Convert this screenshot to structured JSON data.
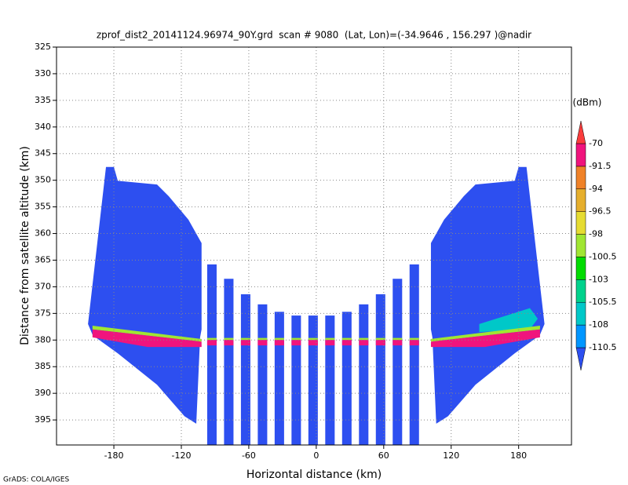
{
  "chart_data": {
    "type": "swath",
    "title": "zprof_dist2_20141124.96974_90Y.grd  scan # 9080  (Lat, Lon)=(-34.9646 , 156.297 )@nadir",
    "x_label": "Horizontal distance (km)",
    "y_label": "Distance from satellite altitude (km)",
    "footer": "GrADS: COLA/IGES",
    "xlim": [
      -231,
      227
    ],
    "xticks": [
      -180,
      -120,
      -60,
      0,
      60,
      120,
      180
    ],
    "ylim": [
      325,
      399.7
    ],
    "y_inverted": true,
    "yticks": [
      325,
      330,
      335,
      340,
      345,
      350,
      355,
      360,
      365,
      370,
      375,
      380,
      385,
      390,
      395
    ],
    "grid": true,
    "regions": [
      {
        "color": "#2d4ff0",
        "points": [
          [
            -187,
            347.5
          ],
          [
            -180,
            347.5
          ],
          [
            -176.5,
            350.1
          ],
          [
            -141.6,
            350.8
          ],
          [
            -131.2,
            353
          ],
          [
            -113.7,
            357.4
          ],
          [
            -102,
            361.8
          ],
          [
            -102,
            378
          ],
          [
            -103.3,
            379.5
          ],
          [
            -106.7,
            395.7
          ],
          [
            -117.2,
            394.3
          ],
          [
            -141.6,
            388.4
          ],
          [
            -176.5,
            382.5
          ],
          [
            -198.8,
            379.1
          ],
          [
            -203,
            377
          ]
        ]
      },
      {
        "color": "#2d4ff0",
        "points": [
          [
            187,
            347.5
          ],
          [
            180,
            347.5
          ],
          [
            176.5,
            350.1
          ],
          [
            141.6,
            350.8
          ],
          [
            131.2,
            353
          ],
          [
            113.7,
            357.4
          ],
          [
            102,
            361.8
          ],
          [
            102,
            378
          ],
          [
            103.3,
            379.5
          ],
          [
            106.7,
            395.7
          ],
          [
            117.2,
            394.3
          ],
          [
            141.6,
            388.4
          ],
          [
            176.5,
            382.5
          ],
          [
            198.8,
            379.1
          ],
          [
            203,
            377
          ]
        ]
      },
      {
        "color": "#00c8c8",
        "points": [
          [
            145,
            377
          ],
          [
            190,
            374
          ],
          [
            197,
            376
          ],
          [
            190,
            378
          ],
          [
            145,
            378.5
          ]
        ]
      },
      {
        "color": "#a0e632",
        "points": [
          [
            -199,
            377.3
          ],
          [
            -102,
            379.8
          ],
          [
            -102,
            380.3
          ],
          [
            -199,
            378
          ]
        ]
      },
      {
        "color": "#f0147d",
        "points": [
          [
            -199,
            378
          ],
          [
            -102,
            380.3
          ],
          [
            -102,
            381.3
          ],
          [
            -150,
            381.3
          ],
          [
            -199,
            379.5
          ]
        ]
      },
      {
        "color": "#a0e632",
        "points": [
          [
            199,
            377.3
          ],
          [
            102,
            379.8
          ],
          [
            102,
            380.3
          ],
          [
            199,
            378
          ]
        ]
      },
      {
        "color": "#f0147d",
        "points": [
          [
            199,
            378
          ],
          [
            102,
            380.3
          ],
          [
            102,
            381.3
          ],
          [
            150,
            381.3
          ],
          [
            199,
            379.5
          ]
        ]
      }
    ],
    "strips": {
      "color": "#2d4ff0",
      "x_left": [
        -97,
        -82,
        -67,
        -52,
        -37,
        -22,
        -7,
        8,
        23,
        38,
        53,
        68,
        83
      ],
      "x_right": [
        -88.6,
        -73.6,
        -58.6,
        -43.6,
        -28.6,
        -13.6,
        1.4,
        16.4,
        31.4,
        46.4,
        61.4,
        76.4,
        91.4
      ],
      "top": [
        365.8,
        368.5,
        371.4,
        373.3,
        374.7,
        375.4,
        375.4,
        375.4,
        374.7,
        373.3,
        371.4,
        368.5,
        365.8
      ]
    },
    "strip_layers": [
      {
        "color": "#a0e632",
        "points": [
          [
            -102,
            379.6
          ],
          [
            102,
            379.6
          ],
          [
            102,
            380
          ],
          [
            -102,
            380
          ]
        ]
      },
      {
        "color": "#f0147d",
        "points": [
          [
            -102,
            380
          ],
          [
            102,
            380
          ],
          [
            102,
            381
          ],
          [
            -102,
            381
          ]
        ]
      }
    ],
    "colorbar": {
      "label": "(dBm)",
      "levels": [
        -110.5,
        -108,
        -105.5,
        -103,
        -100.5,
        -98,
        -96.5,
        -94,
        -91.5,
        -70
      ],
      "colors": [
        "#2d4ff0",
        "#0096ff",
        "#00c8c8",
        "#00d28c",
        "#00dc00",
        "#a0e632",
        "#e6dc32",
        "#e6af2d",
        "#f08228",
        "#f0147d",
        "#fa3c3c"
      ]
    }
  }
}
